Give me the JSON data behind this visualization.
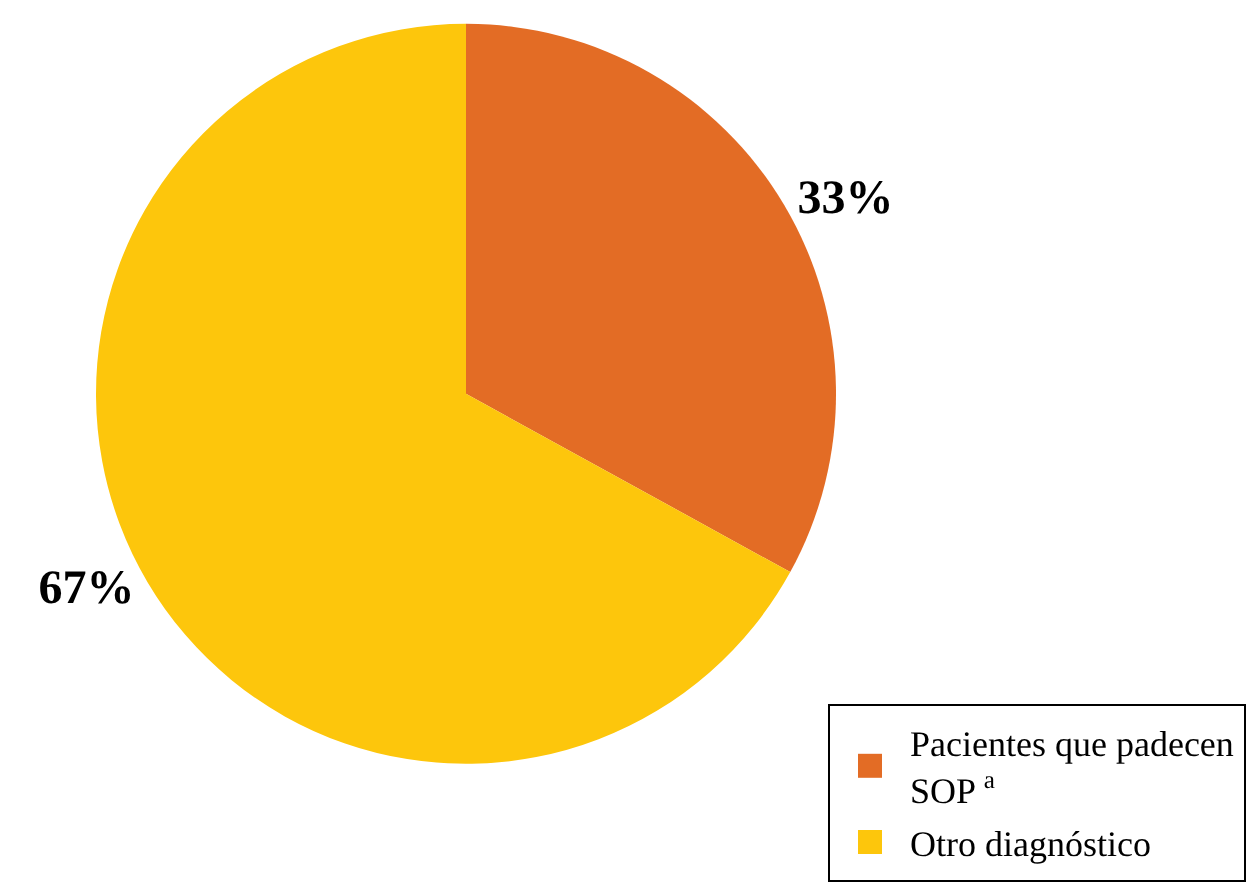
{
  "chart_data": {
    "type": "pie",
    "categories": [
      "Pacientes que padecen SOP $^{a}$",
      "Otro diagnóstico"
    ],
    "values": [
      33,
      67
    ],
    "value_labels": [
      "33%",
      "67%"
    ],
    "colors": [
      "#e36c25",
      "#fdc60c"
    ],
    "legend": "bottom right"
  }
}
